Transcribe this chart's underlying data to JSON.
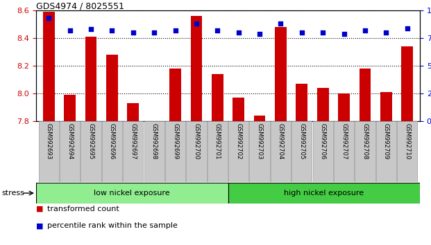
{
  "title": "GDS4974 / 8025551",
  "samples": [
    "GSM992693",
    "GSM992694",
    "GSM992695",
    "GSM992696",
    "GSM992697",
    "GSM992698",
    "GSM992699",
    "GSM992700",
    "GSM992701",
    "GSM992702",
    "GSM992703",
    "GSM992704",
    "GSM992705",
    "GSM992706",
    "GSM992707",
    "GSM992708",
    "GSM992709",
    "GSM992710"
  ],
  "bar_values": [
    8.59,
    7.99,
    8.41,
    8.28,
    7.93,
    7.75,
    8.18,
    8.56,
    8.14,
    7.97,
    7.84,
    8.48,
    8.07,
    8.04,
    8.0,
    8.18,
    8.01,
    8.34
  ],
  "blue_values": [
    93,
    82,
    83,
    82,
    80,
    80,
    82,
    88,
    82,
    80,
    79,
    88,
    80,
    80,
    79,
    82,
    80,
    84
  ],
  "ymin": 7.8,
  "ymax": 8.6,
  "bar_color": "#cc0000",
  "dot_color": "#0000cc",
  "tick_color_left": "#cc0000",
  "tick_color_right": "#0000cc",
  "low_nickel_count": 9,
  "low_nickel_label": "low nickel exposure",
  "high_nickel_label": "high nickel exposure",
  "stress_label": "stress",
  "legend_bar": "transformed count",
  "legend_dot": "percentile rank within the sample",
  "bar_width": 0.55,
  "color_low": "#90ee90",
  "color_high": "#44cc44",
  "color_xlabels_bg": "#c8c8c8"
}
